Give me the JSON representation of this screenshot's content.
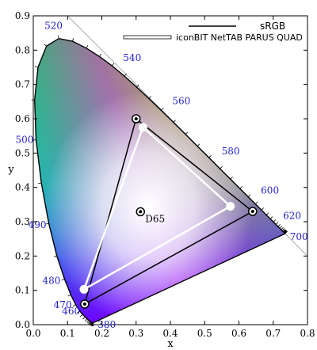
{
  "chart_data": {
    "type": "scatter",
    "title": "",
    "xlabel": "x",
    "ylabel": "y",
    "xlim": [
      0.0,
      0.8
    ],
    "ylim": [
      0.0,
      0.9
    ],
    "x_ticks": [
      "0.0",
      "0.1",
      "0.2",
      "0.3",
      "0.4",
      "0.5",
      "0.6",
      "0.7",
      "0.8"
    ],
    "y_ticks": [
      "0.0",
      "0.1",
      "0.2",
      "0.3",
      "0.4",
      "0.5",
      "0.6",
      "0.7",
      "0.8",
      "0.9"
    ],
    "legend_position": "top-right",
    "legend": [
      {
        "label": "sRGB",
        "color": "#000000"
      },
      {
        "label": "iconBIT NetTAB PARUS QUAD",
        "color": "#ffffff"
      }
    ],
    "locus": [
      [
        0.1741,
        0.005
      ],
      [
        0.1738,
        0.0049
      ],
      [
        0.1736,
        0.0049
      ],
      [
        0.1733,
        0.0048
      ],
      [
        0.173,
        0.0048
      ],
      [
        0.1726,
        0.0048
      ],
      [
        0.1721,
        0.0048
      ],
      [
        0.1714,
        0.0051
      ],
      [
        0.1703,
        0.0058
      ],
      [
        0.1689,
        0.0069
      ],
      [
        0.1669,
        0.0086
      ],
      [
        0.1644,
        0.0109
      ],
      [
        0.1611,
        0.0138
      ],
      [
        0.1566,
        0.0177
      ],
      [
        0.151,
        0.0227
      ],
      [
        0.144,
        0.0297
      ],
      [
        0.1355,
        0.0399
      ],
      [
        0.1241,
        0.0578
      ],
      [
        0.1096,
        0.0868
      ],
      [
        0.0913,
        0.1327
      ],
      [
        0.0687,
        0.2007
      ],
      [
        0.0454,
        0.295
      ],
      [
        0.0235,
        0.4127
      ],
      [
        0.0082,
        0.5384
      ],
      [
        0.0039,
        0.6548
      ],
      [
        0.0139,
        0.7502
      ],
      [
        0.0389,
        0.812
      ],
      [
        0.0743,
        0.8338
      ],
      [
        0.1142,
        0.8262
      ],
      [
        0.1547,
        0.8059
      ],
      [
        0.1929,
        0.7816
      ],
      [
        0.2296,
        0.7543
      ],
      [
        0.2658,
        0.7243
      ],
      [
        0.3016,
        0.6923
      ],
      [
        0.3373,
        0.6589
      ],
      [
        0.3731,
        0.6245
      ],
      [
        0.4087,
        0.5896
      ],
      [
        0.4441,
        0.5547
      ],
      [
        0.4788,
        0.5202
      ],
      [
        0.5125,
        0.4866
      ],
      [
        0.5448,
        0.4544
      ],
      [
        0.5752,
        0.4242
      ],
      [
        0.6029,
        0.3965
      ],
      [
        0.627,
        0.3725
      ],
      [
        0.6482,
        0.3514
      ],
      [
        0.6658,
        0.334
      ],
      [
        0.6801,
        0.3197
      ],
      [
        0.6915,
        0.3083
      ],
      [
        0.7006,
        0.2993
      ],
      [
        0.7079,
        0.292
      ],
      [
        0.714,
        0.2859
      ],
      [
        0.719,
        0.2809
      ],
      [
        0.723,
        0.277
      ],
      [
        0.726,
        0.274
      ],
      [
        0.7283,
        0.2717
      ],
      [
        0.73,
        0.27
      ],
      [
        0.7311,
        0.2689
      ],
      [
        0.732,
        0.268
      ],
      [
        0.7327,
        0.2673
      ],
      [
        0.7334,
        0.2666
      ],
      [
        0.734,
        0.266
      ],
      [
        0.7344,
        0.2656
      ],
      [
        0.7346,
        0.2654
      ],
      [
        0.7347,
        0.2653
      ]
    ],
    "wavelength_labels": [
      {
        "label": "380",
        "x": 0.1741,
        "y": 0.005
      },
      {
        "label": "460",
        "x": 0.144,
        "y": 0.0297
      },
      {
        "label": "470",
        "x": 0.1241,
        "y": 0.0578
      },
      {
        "label": "480",
        "x": 0.0913,
        "y": 0.1327
      },
      {
        "label": "490",
        "x": 0.0454,
        "y": 0.295
      },
      {
        "label": "500",
        "x": 0.0082,
        "y": 0.5384
      },
      {
        "label": "520",
        "x": 0.0743,
        "y": 0.8338
      },
      {
        "label": "540",
        "x": 0.2296,
        "y": 0.7543
      },
      {
        "label": "560",
        "x": 0.3731,
        "y": 0.6245
      },
      {
        "label": "580",
        "x": 0.5125,
        "y": 0.4866
      },
      {
        "label": "600",
        "x": 0.627,
        "y": 0.3725
      },
      {
        "label": "620",
        "x": 0.6915,
        "y": 0.3083
      },
      {
        "label": "700",
        "x": 0.7347,
        "y": 0.2653
      }
    ],
    "series": [
      {
        "name": "sRGB",
        "color": "#000000",
        "points": [
          [
            0.64,
            0.33
          ],
          [
            0.3,
            0.6
          ],
          [
            0.15,
            0.06
          ]
        ]
      },
      {
        "name": "iconBIT NetTAB PARUS QUAD",
        "color": "#ffffff",
        "points": [
          [
            0.575,
            0.345
          ],
          [
            0.32,
            0.575
          ],
          [
            0.148,
            0.103
          ]
        ]
      }
    ],
    "white_point": {
      "label": "D65",
      "x": 0.3127,
      "y": 0.329
    }
  }
}
